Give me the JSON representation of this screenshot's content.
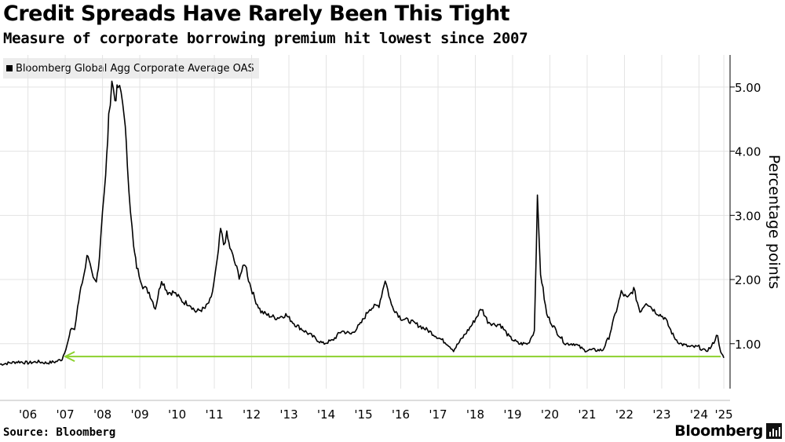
{
  "header": {
    "title": "Credit Spreads Have Rarely Been This Tight",
    "subtitle": "Measure of corporate borrowing premium hit lowest since 2007"
  },
  "footer": {
    "source": "Source: Bloomberg",
    "brand": "Bloomberg"
  },
  "chart_data": {
    "type": "line",
    "title": "Credit Spreads Have Rarely Been This Tight",
    "subtitle": "Measure of corporate borrowing premium hit lowest since 2007",
    "ylabel": "Percentage points",
    "xlabel": "",
    "ylim": [
      0.3,
      5.5
    ],
    "xlim": [
      "2005-10",
      "2025-05"
    ],
    "y_ticks": [
      1.0,
      2.0,
      3.0,
      4.0,
      5.0
    ],
    "y_tick_labels": [
      "1.00",
      "2.00",
      "3.00",
      "4.00",
      "5.00"
    ],
    "x_ticks": [
      "2006-07",
      "2007-07",
      "2008-07",
      "2009-07",
      "2010-07",
      "2011-07",
      "2012-07",
      "2013-07",
      "2014-07",
      "2015-07",
      "2016-07",
      "2017-07",
      "2018-07",
      "2019-07",
      "2020-07",
      "2021-07",
      "2022-07",
      "2023-07",
      "2024-07",
      "2025-03"
    ],
    "x_tick_labels": [
      "'06",
      "'07",
      "'08",
      "'09",
      "'10",
      "'11",
      "'12",
      "'13",
      "'14",
      "'15",
      "'16",
      "'17",
      "'18",
      "'19",
      "'20",
      "'21",
      "'22",
      "'23",
      "'24",
      "'25"
    ],
    "grid": true,
    "legend": "top-left",
    "colors": {
      "series": "#000000",
      "reference_line": "#8cd12e",
      "legend_bg": "#ececec",
      "grid": "#e3e3e3"
    },
    "series": [
      {
        "name": "Bloomberg Global Agg Corporate Average OAS",
        "x": [
          "2005-10",
          "2006-01",
          "2006-04",
          "2006-07",
          "2006-10",
          "2007-01",
          "2007-04",
          "2007-06",
          "2007-08",
          "2007-09",
          "2007-10",
          "2007-11",
          "2007-12",
          "2008-01",
          "2008-02",
          "2008-03",
          "2008-04",
          "2008-05",
          "2008-06",
          "2008-07",
          "2008-08",
          "2008-09",
          "2008-10",
          "2008-11",
          "2008-12",
          "2009-01",
          "2009-02",
          "2009-03",
          "2009-04",
          "2009-05",
          "2009-06",
          "2009-08",
          "2009-10",
          "2009-12",
          "2010-02",
          "2010-04",
          "2010-06",
          "2010-07",
          "2010-09",
          "2010-11",
          "2011-01",
          "2011-04",
          "2011-06",
          "2011-08",
          "2011-09",
          "2011-10",
          "2011-11",
          "2011-12",
          "2012-01",
          "2012-03",
          "2012-05",
          "2012-06",
          "2012-08",
          "2012-10",
          "2012-12",
          "2013-03",
          "2013-06",
          "2013-09",
          "2013-12",
          "2014-03",
          "2014-06",
          "2014-09",
          "2014-12",
          "2015-03",
          "2015-06",
          "2015-09",
          "2015-12",
          "2016-02",
          "2016-04",
          "2016-07",
          "2016-10",
          "2017-01",
          "2017-04",
          "2017-07",
          "2017-10",
          "2017-12",
          "2018-03",
          "2018-06",
          "2018-09",
          "2018-11",
          "2019-01",
          "2019-03",
          "2019-06",
          "2019-09",
          "2019-12",
          "2020-02",
          "2020-03",
          "2020-04",
          "2020-06",
          "2020-09",
          "2020-12",
          "2021-03",
          "2021-06",
          "2021-09",
          "2021-12",
          "2022-02",
          "2022-04",
          "2022-06",
          "2022-08",
          "2022-10",
          "2022-12",
          "2023-02",
          "2023-03",
          "2023-05",
          "2023-08",
          "2023-11",
          "2024-01",
          "2024-04",
          "2024-07",
          "2024-09",
          "2024-11",
          "2025-01",
          "2025-02",
          "2025-03"
        ],
        "values": [
          0.68,
          0.7,
          0.72,
          0.7,
          0.72,
          0.7,
          0.72,
          0.76,
          1.05,
          1.25,
          1.22,
          1.55,
          1.9,
          2.05,
          2.4,
          2.2,
          2.0,
          1.95,
          2.35,
          3.1,
          3.6,
          4.5,
          5.12,
          4.8,
          5.0,
          4.9,
          4.6,
          3.8,
          3.1,
          2.5,
          2.2,
          1.9,
          1.8,
          1.55,
          2.0,
          1.8,
          1.8,
          1.75,
          1.65,
          1.62,
          1.5,
          1.55,
          1.7,
          2.3,
          2.78,
          2.55,
          2.7,
          2.5,
          2.35,
          2.05,
          2.25,
          2.0,
          1.7,
          1.5,
          1.45,
          1.4,
          1.45,
          1.3,
          1.2,
          1.1,
          1.0,
          1.05,
          1.2,
          1.15,
          1.3,
          1.55,
          1.6,
          2.0,
          1.6,
          1.4,
          1.35,
          1.28,
          1.2,
          1.1,
          1.0,
          0.9,
          1.1,
          1.3,
          1.55,
          1.35,
          1.3,
          1.3,
          1.1,
          1.0,
          1.0,
          1.2,
          3.25,
          2.1,
          1.45,
          1.2,
          1.0,
          1.0,
          0.9,
          0.9,
          0.9,
          1.1,
          1.45,
          1.8,
          1.7,
          1.85,
          1.5,
          1.65,
          1.6,
          1.5,
          1.4,
          1.1,
          1.0,
          0.95,
          0.95,
          0.88,
          0.95,
          1.15,
          0.85,
          0.78
        ]
      },
      {
        "name": "",
        "type": "reference-arrow",
        "x": [
          "2007-07",
          "2025-02"
        ],
        "values": [
          0.8,
          0.8
        ]
      }
    ]
  }
}
